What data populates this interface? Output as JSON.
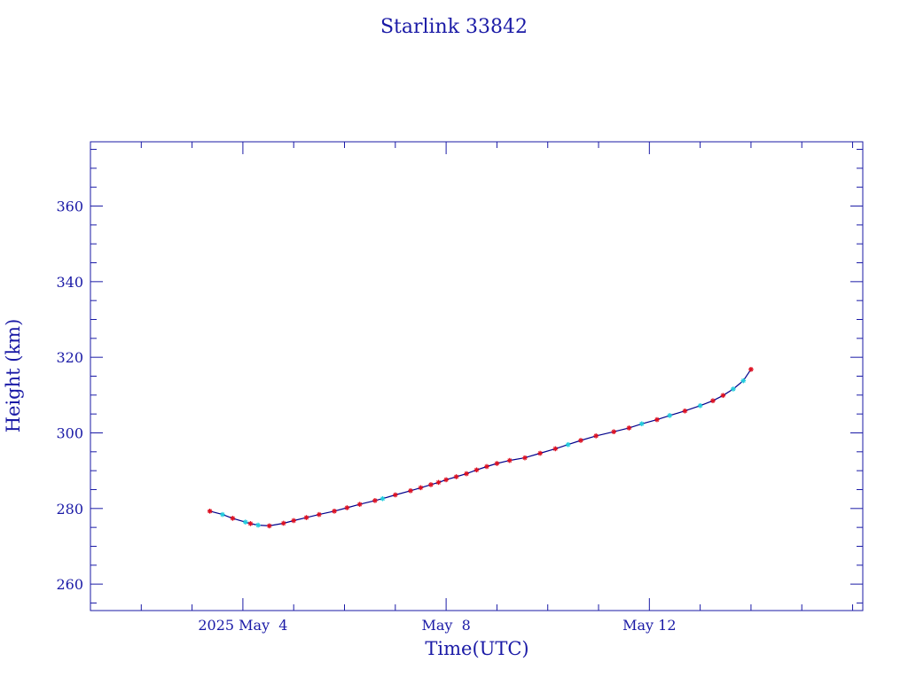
{
  "chart_data": {
    "type": "line",
    "title": "Starlink 33842",
    "xlabel": "Time(UTC)",
    "ylabel": "Height (km)",
    "x_range_days": [
      0.0,
      15.2
    ],
    "x_date_reference": "2025-05-01",
    "ylim": [
      253,
      377
    ],
    "y_ticks": [
      260,
      280,
      300,
      320,
      340,
      360
    ],
    "x_ticks": [
      {
        "day": 3.0,
        "label": "2025 May  4"
      },
      {
        "day": 7.0,
        "label": "May  8"
      },
      {
        "day": 11.0,
        "label": "May 12"
      }
    ],
    "grid": false,
    "colors": {
      "axes": "#1a1aa6",
      "line": "#00008b",
      "marker_red": "#dd1122",
      "marker_cyan": "#22ccdd"
    },
    "series": [
      {
        "x": [
          2.35,
          2.6,
          2.8,
          3.05,
          3.15,
          3.3,
          3.52,
          3.8,
          4.0,
          4.25,
          4.5,
          4.8,
          5.05,
          5.3,
          5.6,
          5.75,
          6.0,
          6.3,
          6.5,
          6.7,
          6.85,
          7.0,
          7.2,
          7.4,
          7.6,
          7.8,
          8.0,
          8.25,
          8.55,
          8.85,
          9.15,
          9.4,
          9.65,
          9.95,
          10.3,
          10.6,
          10.85,
          11.15,
          11.4,
          11.7,
          12.0,
          12.25,
          12.45,
          12.65,
          12.85,
          13.0
        ],
        "y": [
          279.3,
          278.4,
          277.4,
          276.4,
          276.0,
          275.6,
          275.4,
          276.1,
          276.8,
          277.6,
          278.4,
          279.3,
          280.2,
          281.1,
          282.1,
          282.6,
          283.6,
          284.7,
          285.5,
          286.3,
          286.9,
          287.6,
          288.4,
          289.2,
          290.2,
          291.1,
          291.9,
          292.7,
          293.4,
          294.6,
          295.8,
          296.9,
          298.0,
          299.2,
          300.3,
          301.3,
          302.4,
          303.5,
          304.6,
          305.8,
          307.2,
          308.5,
          309.9,
          311.6,
          313.8,
          316.8
        ],
        "marker_colors": [
          "red",
          "cyan",
          "red",
          "cyan",
          "red",
          "cyan",
          "red",
          "red",
          "red",
          "red",
          "red",
          "red",
          "red",
          "red",
          "red",
          "cyan",
          "red",
          "red",
          "red",
          "red",
          "red",
          "red",
          "red",
          "red",
          "red",
          "red",
          "red",
          "red",
          "red",
          "red",
          "red",
          "cyan",
          "red",
          "red",
          "red",
          "red",
          "cyan",
          "red",
          "cyan",
          "red",
          "cyan",
          "red",
          "red",
          "cyan",
          "cyan",
          "red"
        ]
      }
    ]
  }
}
